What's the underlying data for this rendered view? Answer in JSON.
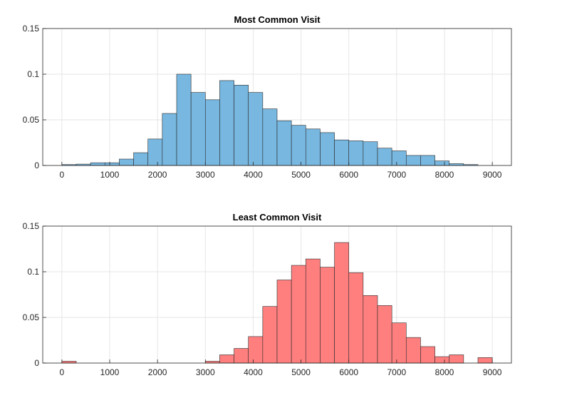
{
  "chart_data": [
    {
      "type": "bar",
      "title": "Most Common Visit",
      "xlabel": "",
      "ylabel": "",
      "xlim": [
        -400,
        9400
      ],
      "ylim": [
        0,
        0.15
      ],
      "xticks": [
        0,
        1000,
        2000,
        3000,
        4000,
        5000,
        6000,
        7000,
        8000,
        9000
      ],
      "xtick_labels": [
        "0",
        "1000",
        "2000",
        "3000",
        "4000",
        "5000",
        "6000",
        "7000",
        "8000",
        "9000"
      ],
      "yticks": [
        0,
        0.05,
        0.1,
        0.15
      ],
      "ytick_labels": [
        "0",
        "0.05",
        "0.1",
        "0.15"
      ],
      "grid": true,
      "legend": "none",
      "color": "#77B7E0",
      "bin_edges": [
        0,
        300,
        600,
        900,
        1200,
        1500,
        1800,
        2100,
        2400,
        2700,
        3000,
        3300,
        3600,
        3900,
        4200,
        4500,
        4800,
        5100,
        5400,
        5700,
        6000,
        6300,
        6600,
        6900,
        7200,
        7500,
        7800,
        8100,
        8400,
        8700,
        9000
      ],
      "values": [
        0.001,
        0.0015,
        0.003,
        0.003,
        0.007,
        0.014,
        0.029,
        0.057,
        0.1,
        0.08,
        0.072,
        0.093,
        0.088,
        0.08,
        0.062,
        0.049,
        0.044,
        0.04,
        0.036,
        0.028,
        0.027,
        0.026,
        0.019,
        0.016,
        0.011,
        0.011,
        0.005,
        0.002,
        0.001,
        0.0
      ]
    },
    {
      "type": "bar",
      "title": "Least Common Visit",
      "xlabel": "",
      "ylabel": "",
      "xlim": [
        -400,
        9400
      ],
      "ylim": [
        0,
        0.15
      ],
      "xticks": [
        0,
        1000,
        2000,
        3000,
        4000,
        5000,
        6000,
        7000,
        8000,
        9000
      ],
      "xtick_labels": [
        "0",
        "1000",
        "2000",
        "3000",
        "4000",
        "5000",
        "6000",
        "7000",
        "8000",
        "9000"
      ],
      "yticks": [
        0,
        0.05,
        0.1,
        0.15
      ],
      "ytick_labels": [
        "0",
        "0.05",
        "0.1",
        "0.15"
      ],
      "grid": true,
      "legend": "none",
      "color": "#FF7F7F",
      "bin_edges": [
        0,
        300,
        600,
        900,
        1200,
        1500,
        1800,
        2100,
        2400,
        2700,
        3000,
        3300,
        3600,
        3900,
        4200,
        4500,
        4800,
        5100,
        5400,
        5700,
        6000,
        6300,
        6600,
        6900,
        7200,
        7500,
        7800,
        8100,
        8400,
        8700,
        9000
      ],
      "values": [
        0.002,
        0.0,
        0.0,
        0.0,
        0.0,
        0.0,
        0.0,
        0.0,
        0.0,
        0.0,
        0.002,
        0.009,
        0.016,
        0.029,
        0.062,
        0.091,
        0.107,
        0.114,
        0.105,
        0.132,
        0.099,
        0.074,
        0.063,
        0.044,
        0.028,
        0.018,
        0.007,
        0.009,
        0.0,
        0.006
      ]
    }
  ]
}
